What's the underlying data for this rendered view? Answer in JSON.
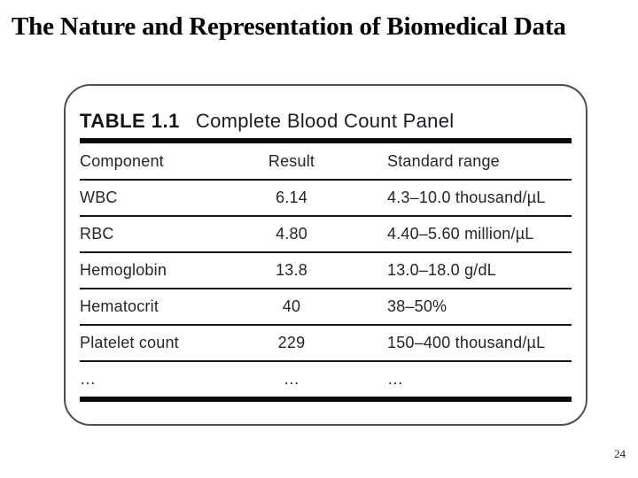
{
  "slide": {
    "title": "The Nature and Representation of Biomedical Data",
    "page_number": "24"
  },
  "table": {
    "label": "TABLE 1.1",
    "caption": "Complete Blood Count Panel",
    "columns": [
      "Component",
      "Result",
      "Standard range"
    ],
    "rows": [
      {
        "component": "WBC",
        "result": "6.14",
        "range": "4.3–10.0 thousand/µL"
      },
      {
        "component": "RBC",
        "result": "4.80",
        "range": "4.40–5.60 million/µL"
      },
      {
        "component": "Hemoglobin",
        "result": "13.8",
        "range": "13.0–18.0 g/dL"
      },
      {
        "component": "Hematocrit",
        "result": "40",
        "range": "38–50%"
      },
      {
        "component": "Platelet count",
        "result": "229",
        "range": "150–400 thousand/µL"
      },
      {
        "component": "…",
        "result": "…",
        "range": "…"
      }
    ]
  },
  "colors": {
    "background": "#ffffff",
    "title_text": "#000000",
    "table_text": "#24242a",
    "rule": "#0a0a0a",
    "panel_border": "#4f4f4f"
  }
}
